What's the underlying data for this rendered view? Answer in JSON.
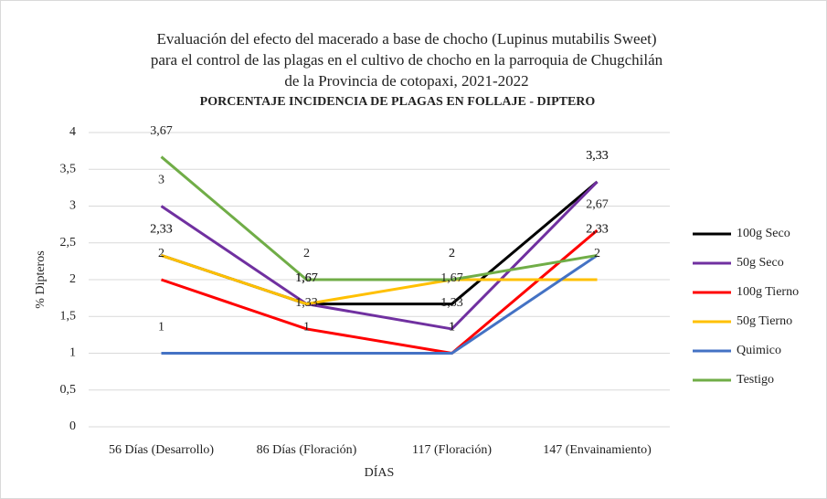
{
  "chart_data": {
    "type": "line",
    "title": [
      "Evaluación del efecto del macerado a base de chocho (Lupinus mutabilis Sweet)",
      "para el control de las plagas en el cultivo de chocho en la parroquia de Chugchilán",
      "de la Provincia de cotopaxi, 2021-2022"
    ],
    "subtitle": "PORCENTAJE INCIDENCIA DE PLAGAS EN FOLLAJE - DIPTERO",
    "x_label": "DÍAS",
    "y_label": "% Dipteros",
    "categories": [
      "56 Días (Desarrollo)",
      "86 Días (Floración)",
      "117 (Floración)",
      "147 (Envainamiento)"
    ],
    "ylim": [
      0,
      4
    ],
    "yticks": [
      0,
      {
        "value": 0.5,
        "label": "0,5"
      },
      1,
      {
        "value": 1.5,
        "label": "1,5"
      },
      2,
      {
        "value": 2.5,
        "label": "2,5"
      },
      3,
      {
        "value": 3.5,
        "label": "3,5"
      },
      4
    ],
    "grid": true,
    "legend": "right",
    "series": [
      {
        "name": "100g Seco",
        "color": "#000000",
        "values": [
          2.33,
          1.67,
          1.67,
          3.33
        ],
        "value_labels": [
          "2,33",
          "1,67",
          "1,67",
          "3,33"
        ]
      },
      {
        "name": "50g Seco",
        "color": "#7030a0",
        "values": [
          3,
          1.67,
          1.33,
          3.33
        ],
        "value_labels": [
          "3",
          "1,67",
          "1,33",
          "3,33"
        ]
      },
      {
        "name": "100g Tierno",
        "color": "#ff0000",
        "values": [
          2,
          1.33,
          1,
          2.67
        ],
        "value_labels": [
          "2",
          "1,33",
          "1",
          "2,67"
        ]
      },
      {
        "name": "50g Tierno",
        "color": "#ffc000",
        "values": [
          2.33,
          1.67,
          2,
          2
        ],
        "value_labels": [
          "2,33",
          "1,67",
          "2",
          "2"
        ]
      },
      {
        "name": "Quimico",
        "color": "#4472c4",
        "values": [
          1,
          1,
          1,
          2.33
        ],
        "value_labels": [
          "1",
          "1",
          "1",
          "2,33"
        ]
      },
      {
        "name": "Testigo",
        "color": "#70ad47",
        "values": [
          3.67,
          2,
          2,
          2.33
        ],
        "value_labels": [
          "3,67",
          "2",
          "2",
          "2,33"
        ]
      }
    ]
  }
}
